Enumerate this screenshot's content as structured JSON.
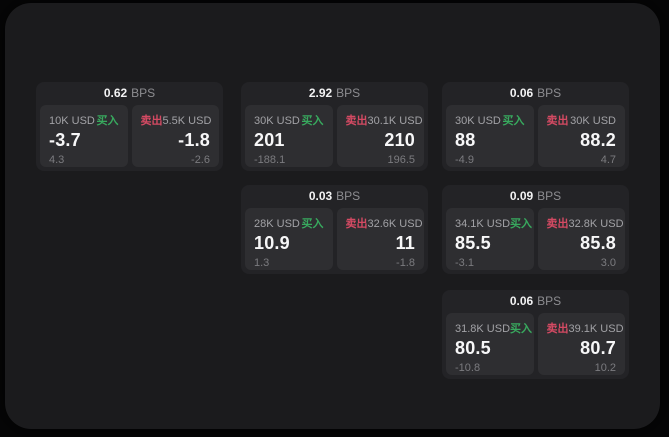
{
  "colors": {
    "buy": "#38a95e",
    "sell": "#d44a63",
    "window_bg": "#1b1b1d",
    "card_bg": "#232326",
    "panel_bg": "#2e2e31"
  },
  "cards": [
    {
      "row": 1,
      "col": 1,
      "bps_value": "0.62",
      "bps_unit": "BPS",
      "buy": {
        "notional": "10K USD",
        "action": "买入",
        "price": "-3.7",
        "delta": "4.3"
      },
      "sell": {
        "notional": "5.5K USD",
        "action": "卖出",
        "price": "-1.8",
        "delta": "-2.6"
      }
    },
    {
      "row": 1,
      "col": 2,
      "bps_value": "2.92",
      "bps_unit": "BPS",
      "buy": {
        "notional": "30K USD",
        "action": "买入",
        "price": "201",
        "delta": "-188.1"
      },
      "sell": {
        "notional": "30.1K USD",
        "action": "卖出",
        "price": "210",
        "delta": "196.5"
      }
    },
    {
      "row": 1,
      "col": 3,
      "bps_value": "0.06",
      "bps_unit": "BPS",
      "buy": {
        "notional": "30K USD",
        "action": "买入",
        "price": "88",
        "delta": "-4.9"
      },
      "sell": {
        "notional": "30K USD",
        "action": "卖出",
        "price": "88.2",
        "delta": "4.7"
      }
    },
    {
      "row": 2,
      "col": 2,
      "bps_value": "0.03",
      "bps_unit": "BPS",
      "buy": {
        "notional": "28K USD",
        "action": "买入",
        "price": "10.9",
        "delta": "1.3"
      },
      "sell": {
        "notional": "32.6K USD",
        "action": "卖出",
        "price": "11",
        "delta": "-1.8"
      }
    },
    {
      "row": 2,
      "col": 3,
      "bps_value": "0.09",
      "bps_unit": "BPS",
      "buy": {
        "notional": "34.1K USD",
        "action": "买入",
        "price": "85.5",
        "delta": "-3.1"
      },
      "sell": {
        "notional": "32.8K USD",
        "action": "卖出",
        "price": "85.8",
        "delta": "3.0"
      }
    },
    {
      "row": 3,
      "col": 3,
      "bps_value": "0.06",
      "bps_unit": "BPS",
      "buy": {
        "notional": "31.8K USD",
        "action": "买入",
        "price": "80.5",
        "delta": "-10.8"
      },
      "sell": {
        "notional": "39.1K USD",
        "action": "卖出",
        "price": "80.7",
        "delta": "10.2"
      }
    }
  ]
}
